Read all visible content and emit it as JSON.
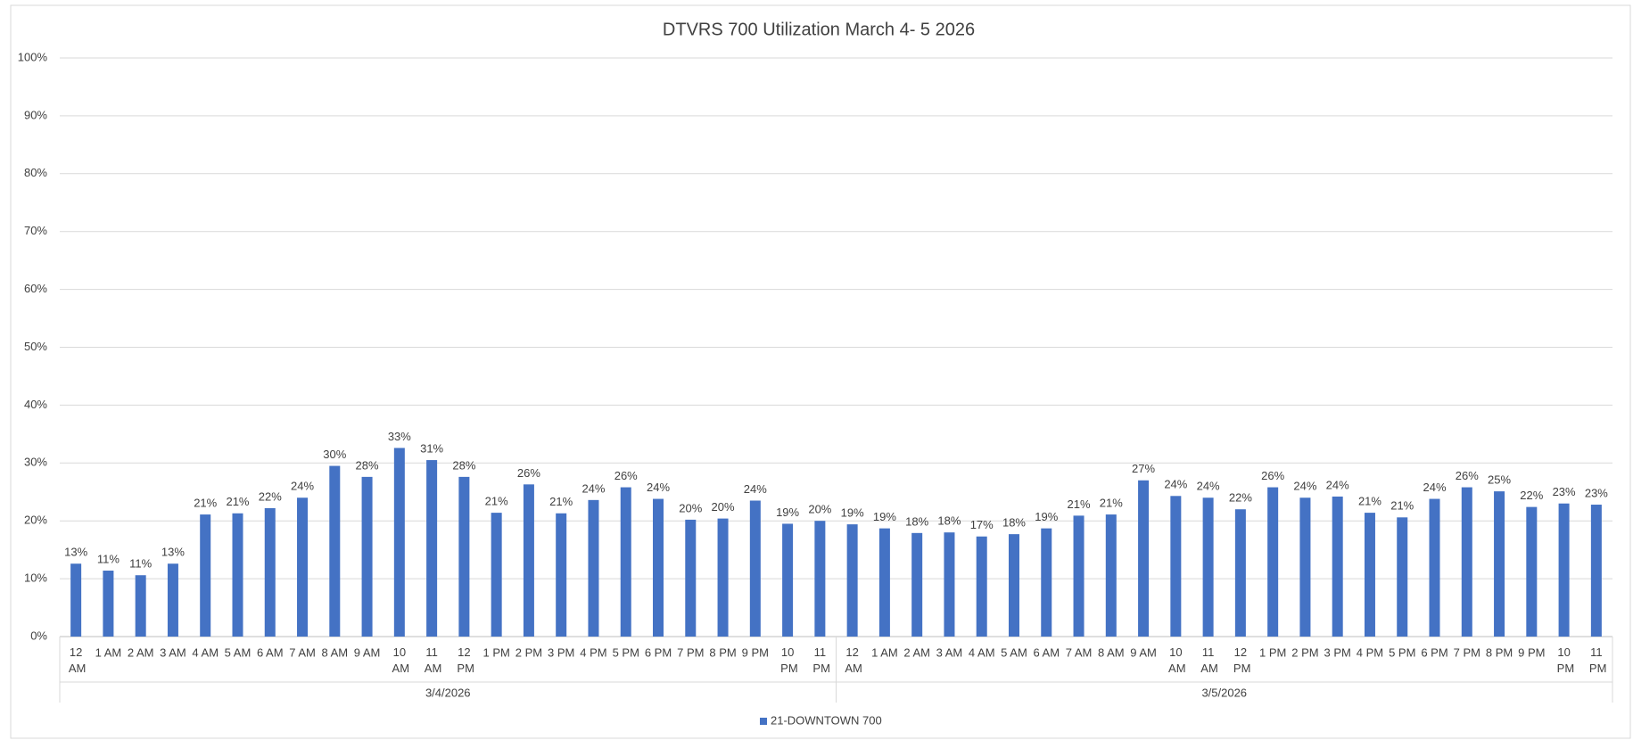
{
  "chart_data": {
    "type": "bar",
    "title": "DTVRS 700 Utilization March 4- 5 2026",
    "groups": [
      {
        "name": "3/4/2026",
        "categories": [
          "12 AM",
          "1 AM",
          "2 AM",
          "3 AM",
          "4 AM",
          "5 AM",
          "6 AM",
          "7 AM",
          "8 AM",
          "9 AM",
          "10 AM",
          "11 AM",
          "12 PM",
          "1 PM",
          "2 PM",
          "3 PM",
          "4 PM",
          "5 PM",
          "6 PM",
          "7 PM",
          "8 PM",
          "9 PM",
          "10 PM",
          "11 PM"
        ]
      },
      {
        "name": "3/5/2026",
        "categories": [
          "12 AM",
          "1 AM",
          "2 AM",
          "3 AM",
          "4 AM",
          "5 AM",
          "6 AM",
          "7 AM",
          "8 AM",
          "9 AM",
          "10 AM",
          "11 AM",
          "12 PM",
          "1 PM",
          "2 PM",
          "3 PM",
          "4 PM",
          "5 PM",
          "6 PM",
          "7 PM",
          "8 PM",
          "9 PM",
          "10 PM",
          "11 PM"
        ]
      }
    ],
    "series": [
      {
        "name": "21-DOWNTOWN 700",
        "color": "#4472c4",
        "values": [
          12.6,
          11.4,
          10.6,
          12.6,
          21.1,
          21.3,
          22.2,
          24.0,
          29.5,
          27.6,
          32.6,
          30.5,
          27.6,
          21.4,
          26.3,
          21.3,
          23.6,
          25.8,
          23.8,
          20.2,
          20.4,
          23.5,
          19.5,
          20.0,
          19.4,
          18.7,
          17.9,
          18.0,
          17.3,
          17.7,
          18.7,
          20.9,
          21.1,
          27.0,
          24.3,
          24.0,
          22.0,
          25.8,
          24.0,
          24.2,
          21.4,
          20.6,
          23.8,
          25.8,
          25.1,
          22.4,
          23.0,
          22.8
        ],
        "value_labels": [
          "13%",
          "11%",
          "11%",
          "13%",
          "21%",
          "21%",
          "22%",
          "24%",
          "30%",
          "28%",
          "33%",
          "31%",
          "28%",
          "21%",
          "26%",
          "21%",
          "24%",
          "26%",
          "24%",
          "20%",
          "20%",
          "24%",
          "19%",
          "20%",
          "19%",
          "19%",
          "18%",
          "18%",
          "17%",
          "18%",
          "19%",
          "21%",
          "21%",
          "27%",
          "24%",
          "24%",
          "22%",
          "26%",
          "24%",
          "24%",
          "21%",
          "21%",
          "24%",
          "26%",
          "25%",
          "22%",
          "23%",
          "23%"
        ]
      }
    ],
    "ylim": [
      0,
      100
    ],
    "yticks": [
      {
        "value": 0,
        "label": "0%"
      },
      {
        "value": 10,
        "label": "10%"
      },
      {
        "value": 20,
        "label": "20%"
      },
      {
        "value": 30,
        "label": "30%"
      },
      {
        "value": 40,
        "label": "40%"
      },
      {
        "value": 50,
        "label": "50%"
      },
      {
        "value": 60,
        "label": "60%"
      },
      {
        "value": 70,
        "label": "70%"
      },
      {
        "value": 80,
        "label": "80%"
      },
      {
        "value": 90,
        "label": "90%"
      },
      {
        "value": 100,
        "label": "100%"
      }
    ],
    "grid": true,
    "legend": "bottom"
  }
}
